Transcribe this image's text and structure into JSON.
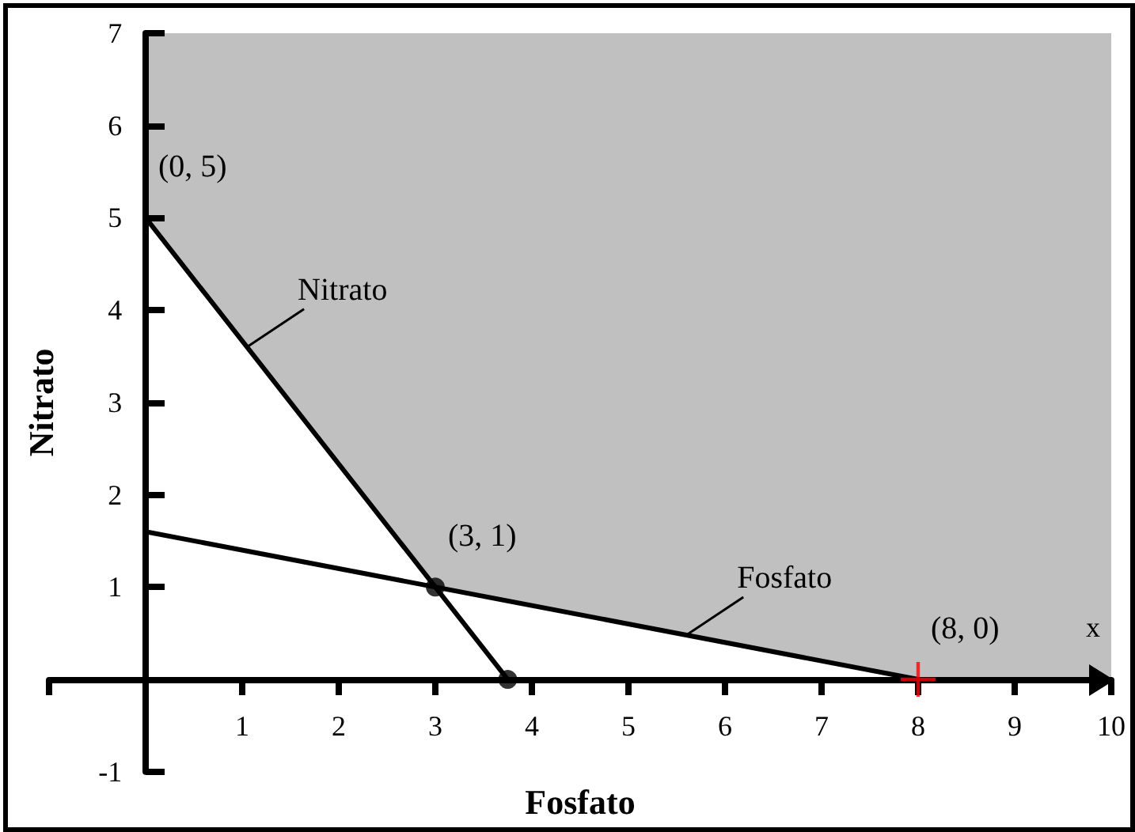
{
  "chart_data": {
    "type": "line",
    "xlabel": "Fosfato",
    "ylabel": "Nitrato",
    "xlim": [
      -1,
      10
    ],
    "ylim": [
      -1,
      7
    ],
    "xticks": [
      {
        "value": -1,
        "label": null
      },
      1,
      2,
      3,
      4,
      5,
      6,
      7,
      8,
      9,
      10
    ],
    "yticks": [
      -1,
      1,
      2,
      3,
      4,
      5,
      6,
      7
    ],
    "grid": false,
    "legend": false,
    "marker": "none",
    "line_style": "solid",
    "series": [
      {
        "name": "Nitrato",
        "color": "#000000",
        "x": [
          0,
          3.75
        ],
        "values": [
          5,
          0
        ]
      },
      {
        "name": "Fosfato",
        "color": "#000000",
        "x": [
          0,
          8
        ],
        "values": [
          1.6,
          0
        ]
      },
      {
        "type": "scatter",
        "marker": "circle",
        "color": "#000000",
        "x": [
          3,
          3.75
        ],
        "values": [
          1,
          0
        ]
      },
      {
        "type": "scatter",
        "marker": "cross",
        "color": "#ff0000",
        "x": [
          8
        ],
        "values": [
          0
        ]
      }
    ],
    "annotations": [
      {
        "text": "(0, 5)",
        "x": 0,
        "y": 5
      },
      {
        "text": "(3, 1)",
        "x": 3,
        "y": 1
      },
      {
        "text": "(8, 0)",
        "x": 8,
        "y": 0
      },
      "x"
    ]
  }
}
